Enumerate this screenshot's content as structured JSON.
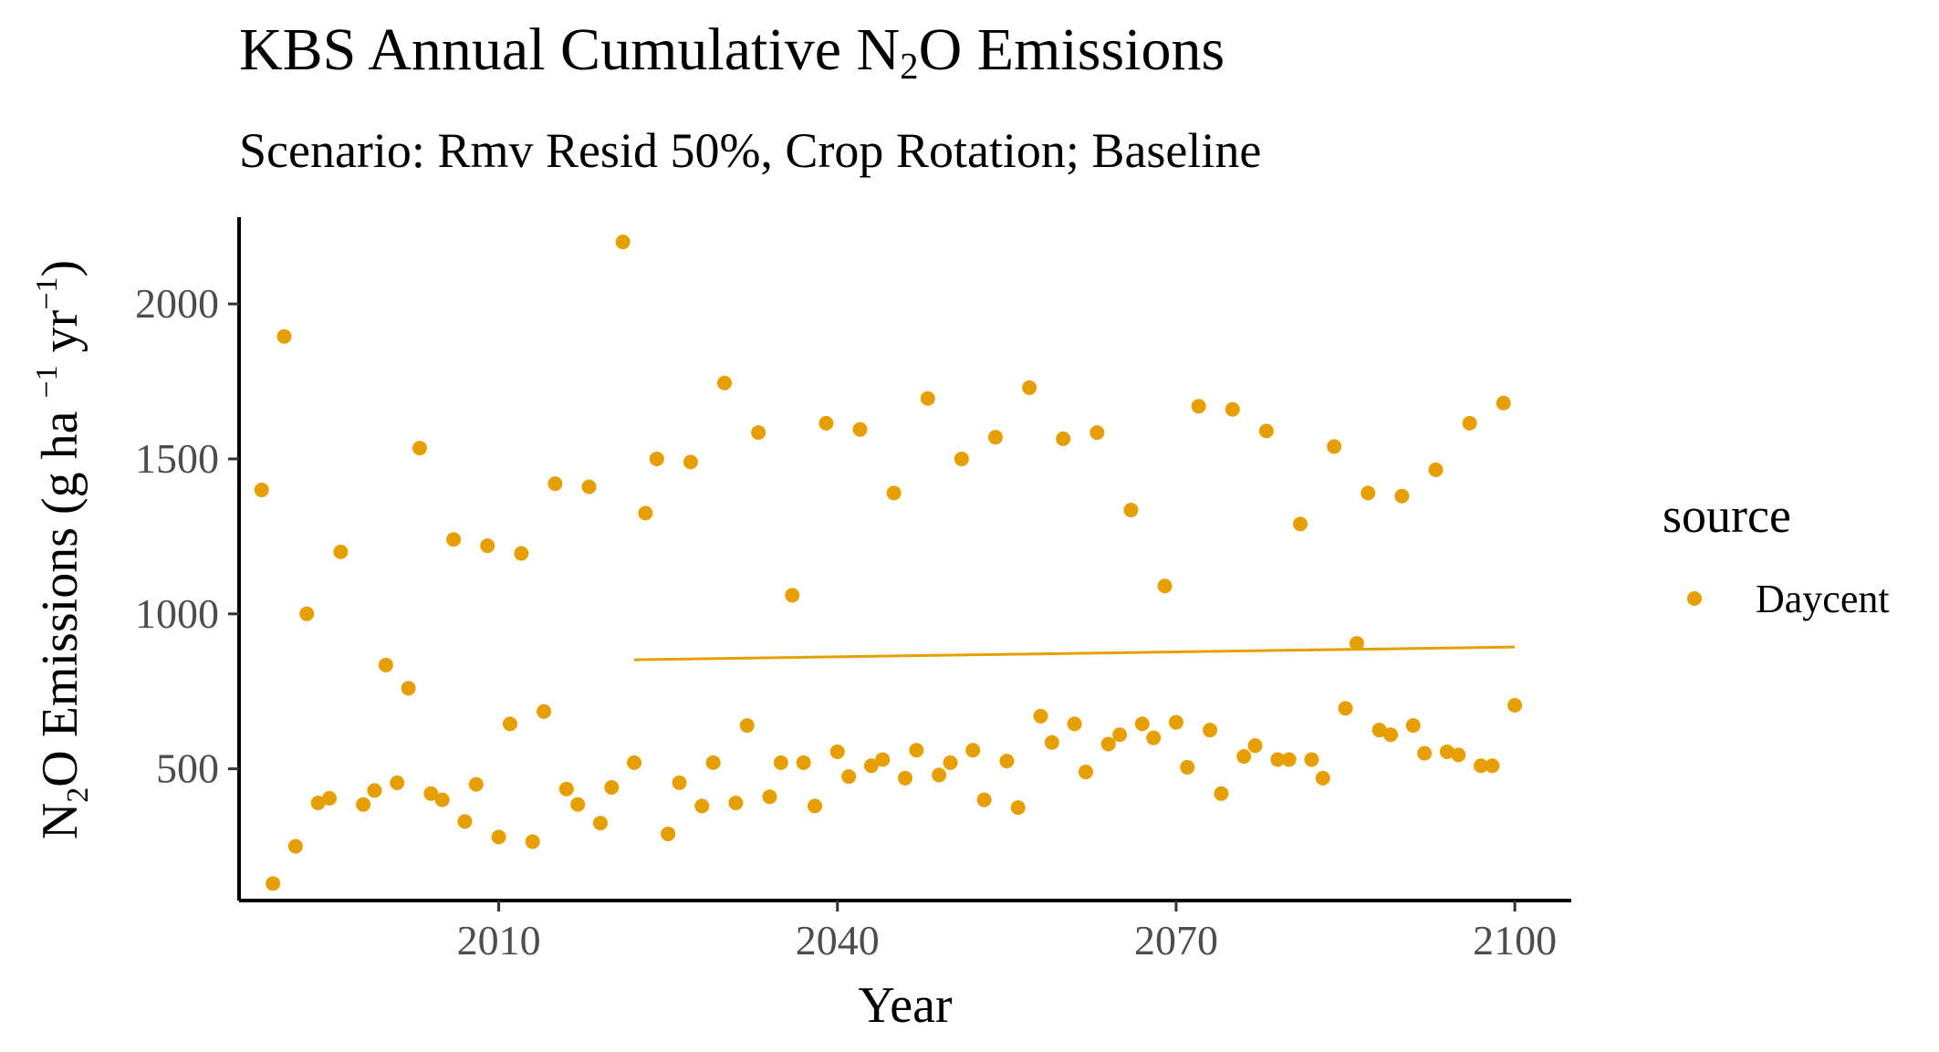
{
  "chart_data": {
    "type": "scatter",
    "title_prefix": "KBS Annual Cumulative N",
    "title_sub": "2",
    "title_suffix": "O Emissions",
    "title": "KBS Annual Cumulative N2O Emissions",
    "subtitle": "Scenario: Rmv Resid 50%, Crop Rotation; Baseline",
    "xlabel": "Year",
    "ylabel": "N2O Emissions (g ha-1 yr-1)",
    "xlim": [
      1987,
      2105
    ],
    "ylim": [
      75,
      2280
    ],
    "x_ticks": [
      2010,
      2040,
      2070,
      2100
    ],
    "y_ticks": [
      500,
      1000,
      1500,
      2000
    ],
    "grid": false,
    "color": "#E69F00",
    "legend": {
      "title": "source",
      "label": "Daycent",
      "position": "right"
    },
    "series": [
      {
        "name": "Daycent",
        "points": [
          [
            1989,
            1400
          ],
          [
            1990,
            130
          ],
          [
            1991,
            1895
          ],
          [
            1992,
            250
          ],
          [
            1993,
            1000
          ],
          [
            1994,
            390
          ],
          [
            1995,
            405
          ],
          [
            1996,
            1200
          ],
          [
            1998,
            385
          ],
          [
            1999,
            430
          ],
          [
            2000,
            835
          ],
          [
            2001,
            455
          ],
          [
            2002,
            760
          ],
          [
            2003,
            1535
          ],
          [
            2004,
            420
          ],
          [
            2005,
            400
          ],
          [
            2006,
            1240
          ],
          [
            2007,
            330
          ],
          [
            2008,
            450
          ],
          [
            2009,
            1220
          ],
          [
            2010,
            280
          ],
          [
            2011,
            645
          ],
          [
            2012,
            1195
          ],
          [
            2013,
            265
          ],
          [
            2014,
            685
          ],
          [
            2015,
            1420
          ],
          [
            2016,
            435
          ],
          [
            2017,
            385
          ],
          [
            2018,
            1410
          ],
          [
            2019,
            325
          ],
          [
            2020,
            440
          ],
          [
            2021,
            2200
          ],
          [
            2022,
            520
          ],
          [
            2023,
            1325
          ],
          [
            2024,
            1500
          ],
          [
            2025,
            290
          ],
          [
            2026,
            455
          ],
          [
            2027,
            1490
          ],
          [
            2028,
            380
          ],
          [
            2029,
            520
          ],
          [
            2030,
            1745
          ],
          [
            2031,
            390
          ],
          [
            2032,
            640
          ],
          [
            2033,
            1585
          ],
          [
            2034,
            410
          ],
          [
            2035,
            520
          ],
          [
            2036,
            1060
          ],
          [
            2037,
            520
          ],
          [
            2038,
            380
          ],
          [
            2039,
            1615
          ],
          [
            2040,
            555
          ],
          [
            2041,
            475
          ],
          [
            2042,
            1595
          ],
          [
            2043,
            510
          ],
          [
            2044,
            530
          ],
          [
            2045,
            1390
          ],
          [
            2046,
            470
          ],
          [
            2047,
            560
          ],
          [
            2048,
            1695
          ],
          [
            2049,
            480
          ],
          [
            2050,
            520
          ],
          [
            2051,
            1500
          ],
          [
            2052,
            560
          ],
          [
            2053,
            400
          ],
          [
            2054,
            1570
          ],
          [
            2055,
            525
          ],
          [
            2056,
            375
          ],
          [
            2057,
            1730
          ],
          [
            2058,
            670
          ],
          [
            2059,
            585
          ],
          [
            2060,
            1565
          ],
          [
            2061,
            645
          ],
          [
            2062,
            490
          ],
          [
            2063,
            1585
          ],
          [
            2064,
            580
          ],
          [
            2065,
            610
          ],
          [
            2066,
            1335
          ],
          [
            2067,
            645
          ],
          [
            2068,
            600
          ],
          [
            2069,
            1090
          ],
          [
            2070,
            650
          ],
          [
            2071,
            505
          ],
          [
            2072,
            1670
          ],
          [
            2073,
            625
          ],
          [
            2074,
            420
          ],
          [
            2075,
            1660
          ],
          [
            2076,
            540
          ],
          [
            2077,
            575
          ],
          [
            2078,
            1590
          ],
          [
            2079,
            530
          ],
          [
            2080,
            530
          ],
          [
            2081,
            1290
          ],
          [
            2082,
            530
          ],
          [
            2083,
            470
          ],
          [
            2084,
            1540
          ],
          [
            2085,
            695
          ],
          [
            2086,
            905
          ],
          [
            2087,
            1390
          ],
          [
            2088,
            625
          ],
          [
            2089,
            610
          ],
          [
            2090,
            1380
          ],
          [
            2091,
            640
          ],
          [
            2092,
            550
          ],
          [
            2093,
            1465
          ],
          [
            2094,
            555
          ],
          [
            2095,
            545
          ],
          [
            2096,
            1615
          ],
          [
            2097,
            510
          ],
          [
            2098,
            510
          ],
          [
            2099,
            1680
          ],
          [
            2100,
            705
          ]
        ]
      }
    ],
    "trend_line": {
      "x": [
        2022,
        2100
      ],
      "y": [
        852,
        893
      ]
    }
  }
}
